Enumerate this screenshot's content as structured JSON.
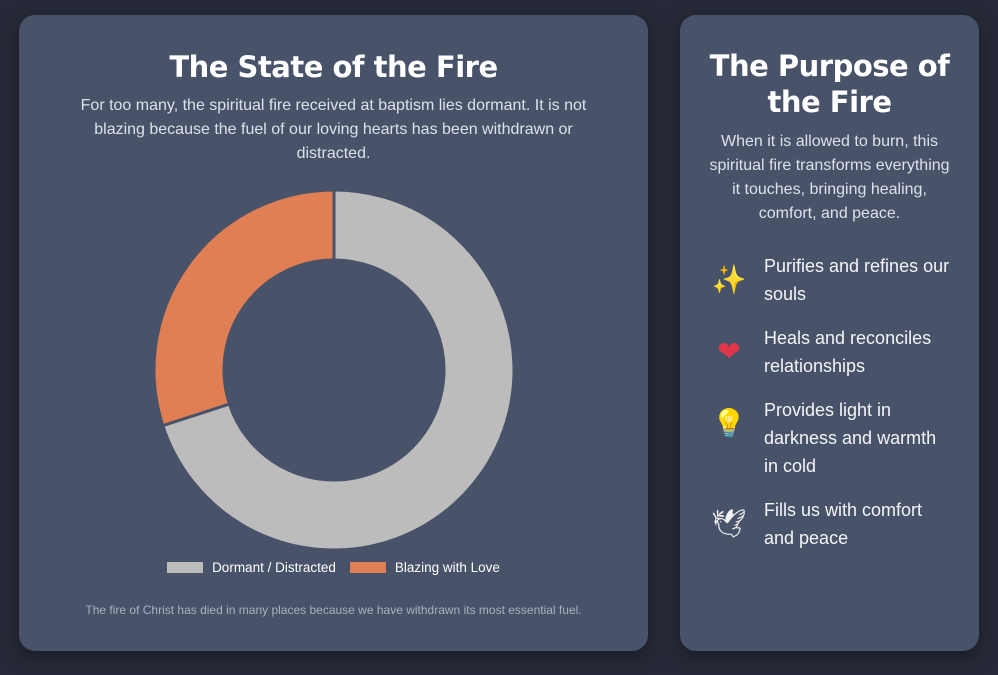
{
  "left": {
    "title": "The State of the Fire",
    "description": "For too many, the spiritual fire received at baptism lies dormant. It is not blazing because the fuel of our loving hearts has been withdrawn or distracted.",
    "footnote": "The fire of Christ has died in many places because we have withdrawn its most essential fuel."
  },
  "right": {
    "title": "The Purpose of the Fire",
    "description": "When it is allowed to burn, this spiritual fire transforms everything it touches, bringing healing, comfort, and peace.",
    "items": [
      {
        "icon": "sparkles-icon",
        "glyph": "✨",
        "text": "Purifies and refines our souls"
      },
      {
        "icon": "bandaged-heart-icon",
        "glyph": "❤",
        "text": "Heals and reconciles relationships"
      },
      {
        "icon": "lightbulb-icon",
        "glyph": "💡",
        "text": "Provides light in darkness and warmth in cold"
      },
      {
        "icon": "dove-icon",
        "glyph": "🕊",
        "text": "Fills us with comfort and peace"
      }
    ]
  },
  "chart_data": {
    "type": "pie",
    "variant": "doughnut",
    "categories": [
      "Dormant / Distracted",
      "Blazing with Love"
    ],
    "values": [
      70,
      30
    ],
    "colors": [
      "#bcbcbc",
      "#e07e54"
    ],
    "legend_position": "bottom"
  }
}
